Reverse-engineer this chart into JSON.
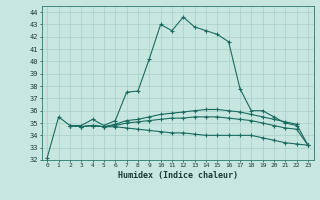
{
  "title": "",
  "xlabel": "Humidex (Indice chaleur)",
  "ylabel": "",
  "xlim": [
    -0.5,
    23.5
  ],
  "ylim": [
    32,
    44.5
  ],
  "yticks": [
    32,
    33,
    34,
    35,
    36,
    37,
    38,
    39,
    40,
    41,
    42,
    43,
    44
  ],
  "xticks": [
    0,
    1,
    2,
    3,
    4,
    5,
    6,
    7,
    8,
    9,
    10,
    11,
    12,
    13,
    14,
    15,
    16,
    17,
    18,
    19,
    20,
    21,
    22,
    23
  ],
  "bg_color": "#c8e6e0",
  "grid_color": "#a8cfc8",
  "line_color": "#1a6b60",
  "line1": [
    32.2,
    35.5,
    34.8,
    34.8,
    35.3,
    34.8,
    35.2,
    37.5,
    37.6,
    40.2,
    43.0,
    42.5,
    43.6,
    42.8,
    42.5,
    42.2,
    41.6,
    37.8,
    36.0,
    36.0,
    35.5,
    35.0,
    34.8,
    null
  ],
  "line2": [
    null,
    null,
    34.8,
    34.7,
    34.8,
    34.7,
    34.9,
    35.2,
    35.3,
    35.5,
    35.7,
    35.8,
    35.9,
    36.0,
    36.1,
    36.1,
    36.0,
    35.9,
    35.7,
    35.5,
    35.3,
    35.1,
    34.9,
    33.2
  ],
  "line3": [
    null,
    null,
    34.8,
    34.7,
    34.8,
    34.7,
    34.8,
    35.0,
    35.1,
    35.2,
    35.3,
    35.4,
    35.4,
    35.5,
    35.5,
    35.5,
    35.4,
    35.3,
    35.2,
    35.0,
    34.8,
    34.6,
    34.5,
    33.2
  ],
  "line4": [
    null,
    null,
    34.8,
    34.7,
    34.8,
    34.7,
    34.7,
    34.6,
    34.5,
    34.4,
    34.3,
    34.2,
    34.2,
    34.1,
    34.0,
    34.0,
    34.0,
    34.0,
    34.0,
    33.8,
    33.6,
    33.4,
    33.3,
    33.2
  ]
}
